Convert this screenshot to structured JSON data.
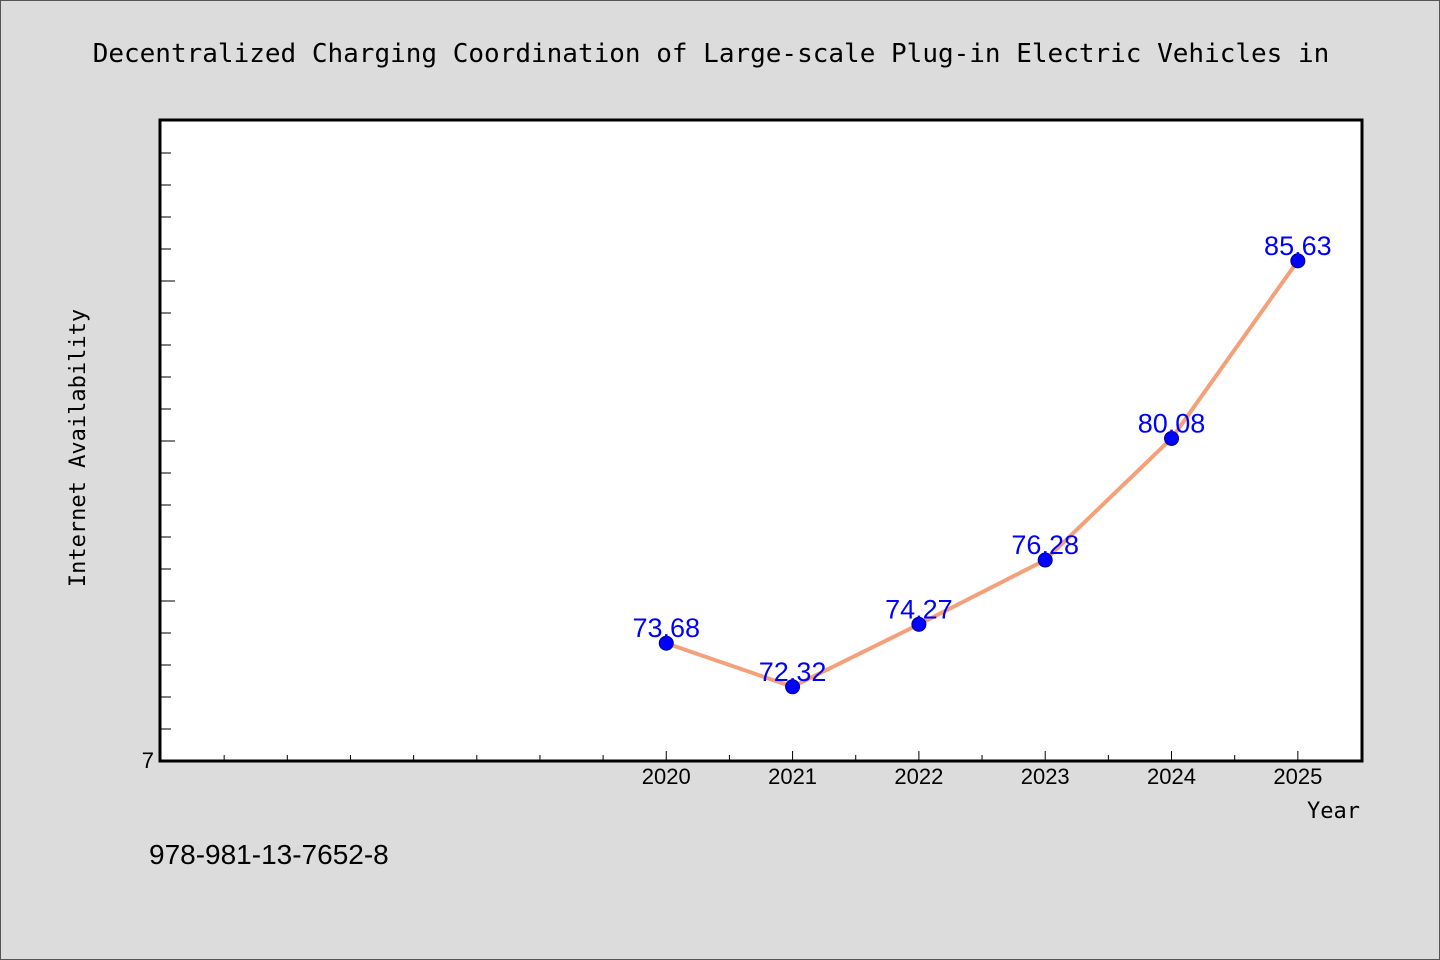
{
  "chart_data": {
    "type": "line",
    "title": "Decentralized Charging Coordination of Large-scale Plug-in Electric Vehicles in",
    "xlabel": "Year",
    "ylabel": "Internet Availability",
    "categories": [
      "2020",
      "2021",
      "2022",
      "2023",
      "2024",
      "2025"
    ],
    "x": [
      2020,
      2021,
      2022,
      2023,
      2024,
      2025
    ],
    "values": [
      73.68,
      72.32,
      74.27,
      76.28,
      80.08,
      85.63
    ],
    "data_labels": [
      "73.68",
      "72.32",
      "74.27",
      "76.28",
      "80.08",
      "85.63"
    ],
    "xlim": [
      2016,
      2025.5
    ],
    "ylim": [
      70,
      90
    ],
    "y_tick_labels": [
      "7"
    ],
    "grid": false,
    "line_color": "#f4a07a",
    "marker_color": "#0000ff",
    "label_color": "#0000ff"
  },
  "footer": {
    "isbn": "978-981-13-7652-8"
  },
  "colors": {
    "background": "#dcdcdc",
    "plot_background": "#ffffff",
    "axis": "#000000"
  }
}
